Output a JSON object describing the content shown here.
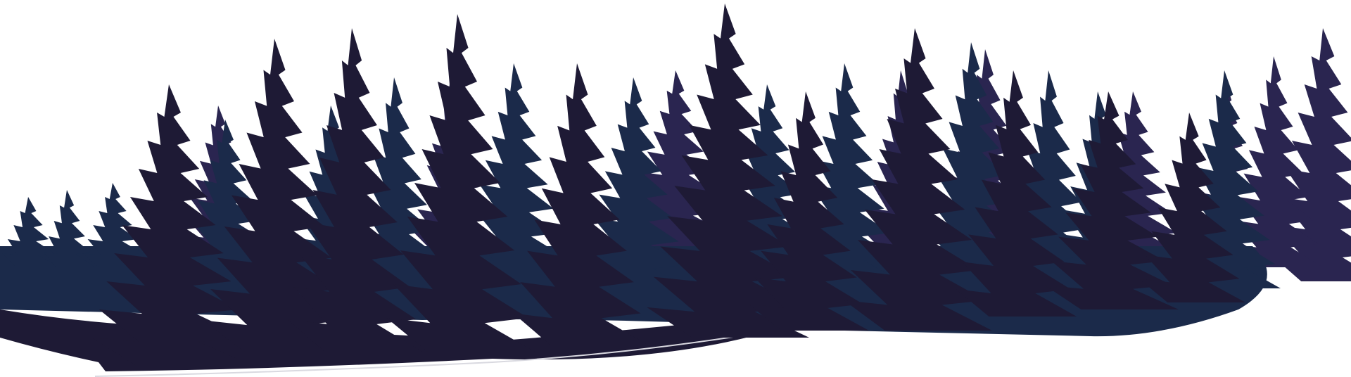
{
  "scene": {
    "subject": "forest-silhouette",
    "colors": {
      "background": "#ffffff",
      "back_layer": "#2a2550",
      "mid_layer": "#1b2a4a",
      "front_layer": "#1e1a35",
      "ground_edge": "#d9d9e0"
    }
  }
}
